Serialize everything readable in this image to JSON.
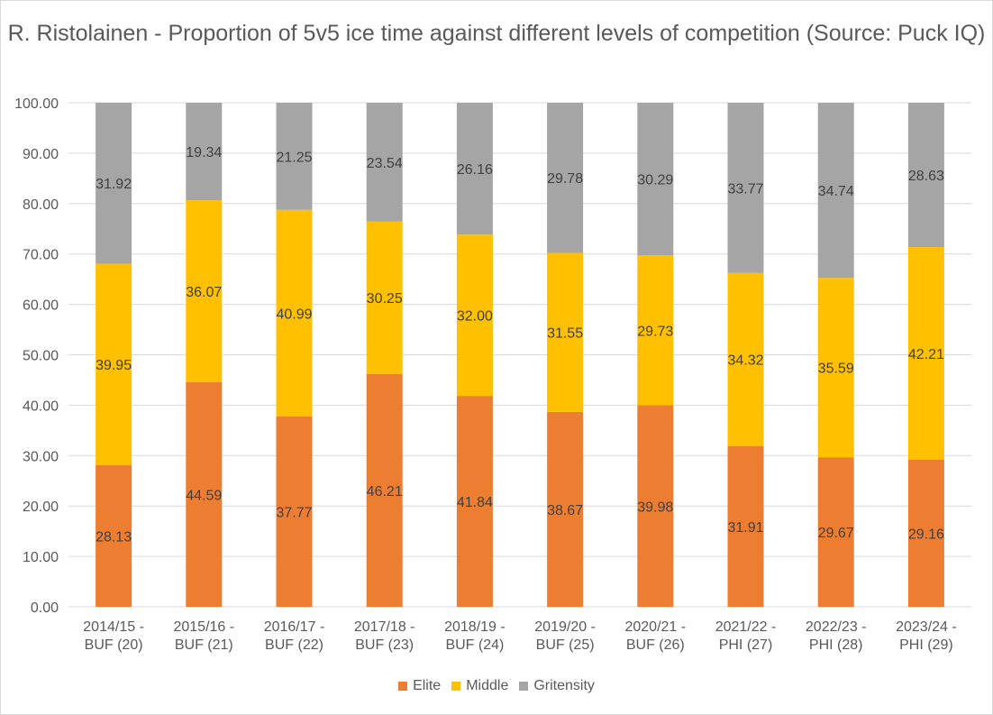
{
  "chart_data": {
    "type": "bar",
    "stacked": true,
    "title": "R. Ristolainen - Proportion of 5v5 ice time against different levels of competition (Source: Puck IQ)",
    "categories": [
      [
        "2014/15 -",
        "BUF (20)"
      ],
      [
        "2015/16 -",
        "BUF (21)"
      ],
      [
        "2016/17 -",
        "BUF (22)"
      ],
      [
        "2017/18 -",
        "BUF (23)"
      ],
      [
        "2018/19 -",
        "BUF (24)"
      ],
      [
        "2019/20 -",
        "BUF (25)"
      ],
      [
        "2020/21 -",
        "BUF (26)"
      ],
      [
        "2021/22 -",
        "PHI (27)"
      ],
      [
        "2022/23 -",
        "PHI (28)"
      ],
      [
        "2023/24 -",
        "PHI (29)"
      ]
    ],
    "series": [
      {
        "name": "Elite",
        "color": "#ed7d31",
        "values": [
          28.13,
          44.59,
          37.77,
          46.21,
          41.84,
          38.67,
          39.98,
          31.91,
          29.67,
          29.16
        ],
        "labels": [
          "28.13",
          "44.59",
          "37.77",
          "46.21",
          "41.84",
          "38.67",
          "39.98",
          "31.91",
          "29.67",
          "29.16"
        ]
      },
      {
        "name": "Middle",
        "color": "#ffc000",
        "values": [
          39.95,
          36.07,
          40.99,
          30.25,
          32.0,
          31.55,
          29.73,
          34.32,
          35.59,
          42.21
        ],
        "labels": [
          "39.95",
          "36.07",
          "40.99",
          "30.25",
          "32.00",
          "31.55",
          "29.73",
          "34.32",
          "35.59",
          "42.21"
        ]
      },
      {
        "name": "Gritensity",
        "color": "#a5a5a5",
        "values": [
          31.92,
          19.34,
          21.25,
          23.54,
          26.16,
          29.78,
          30.29,
          33.77,
          34.74,
          28.63
        ],
        "labels": [
          "31.92",
          "19.34",
          "21.25",
          "23.54",
          "26.16",
          "29.78",
          "30.29",
          "33.77",
          "34.74",
          "28.63"
        ]
      }
    ],
    "xlabel": "",
    "ylabel": "",
    "ylim": [
      0,
      100
    ],
    "yticks": [
      "0.00",
      "10.00",
      "20.00",
      "30.00",
      "40.00",
      "50.00",
      "60.00",
      "70.00",
      "80.00",
      "90.00",
      "100.00"
    ],
    "grid": true,
    "legend_position": "bottom",
    "text_color": "#595959",
    "grid_color": "#d9d9d9"
  }
}
